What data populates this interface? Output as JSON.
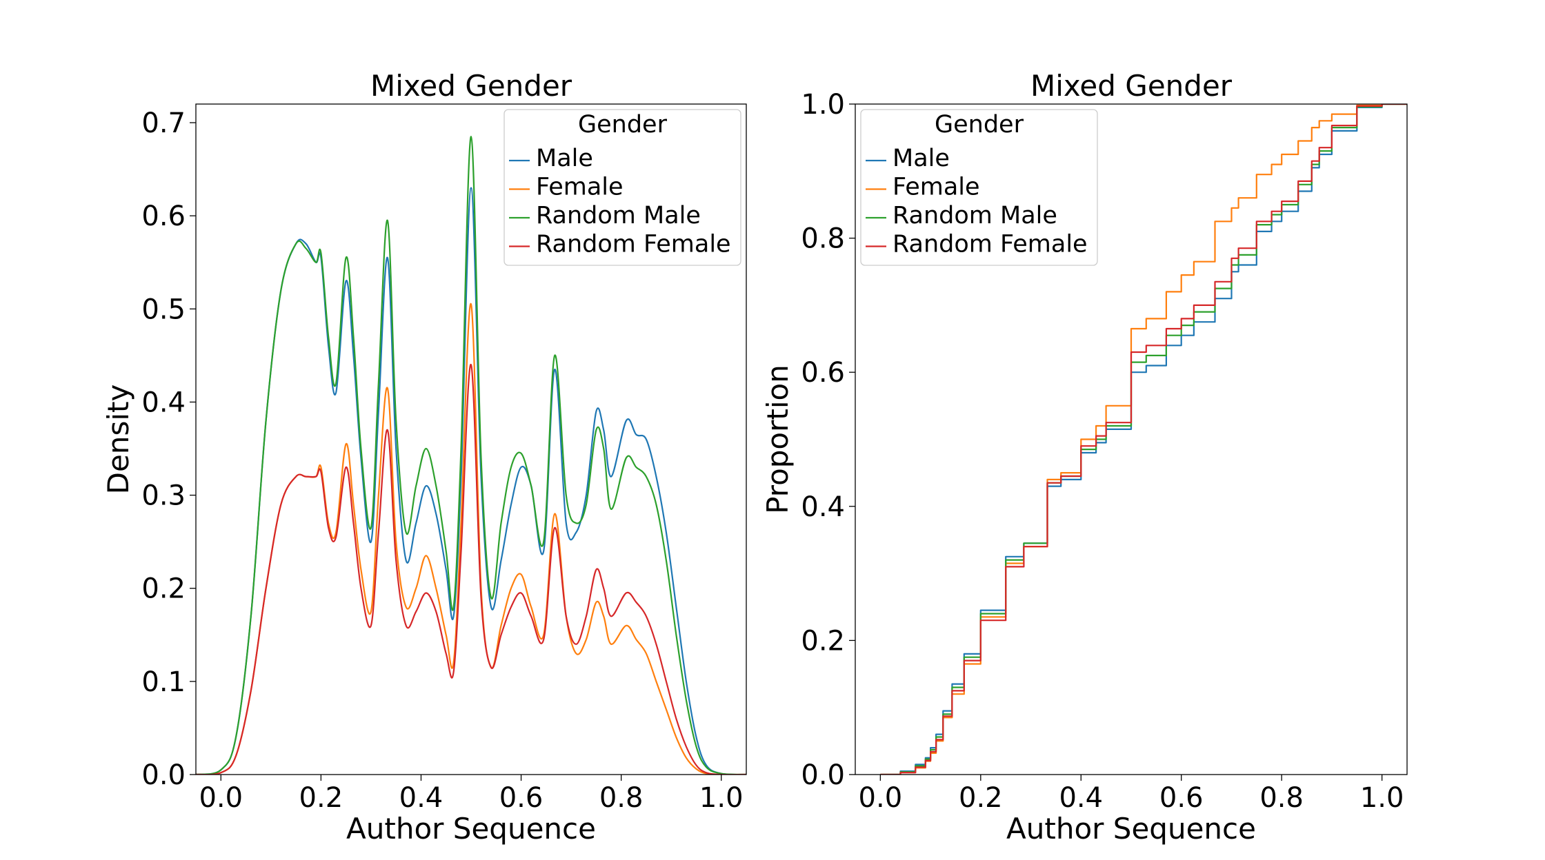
{
  "chart_data": [
    {
      "type": "line",
      "title": "Mixed Gender",
      "xlabel": "Author Sequence",
      "ylabel": "Density",
      "xlim": [
        -0.05,
        1.05
      ],
      "ylim": [
        0,
        0.72
      ],
      "xticks": [
        0.0,
        0.2,
        0.4,
        0.6,
        0.8,
        1.0
      ],
      "xtick_labels": [
        "0.0",
        "0.2",
        "0.4",
        "0.6",
        "0.8",
        "1.0"
      ],
      "yticks": [
        0.0,
        0.1,
        0.2,
        0.3,
        0.4,
        0.5,
        0.6,
        0.7
      ],
      "ytick_labels": [
        "0.0",
        "0.1",
        "0.2",
        "0.3",
        "0.4",
        "0.5",
        "0.6",
        "0.7"
      ],
      "grid": false,
      "legend": {
        "title": "Gender",
        "position": "top-right"
      },
      "series": [
        {
          "name": "Male",
          "color": "#1f77b4",
          "x": [
            -0.05,
            0,
            0.03,
            0.06,
            0.09,
            0.12,
            0.15,
            0.17,
            0.19,
            0.2,
            0.215,
            0.23,
            0.25,
            0.265,
            0.28,
            0.3,
            0.315,
            0.333,
            0.35,
            0.37,
            0.39,
            0.41,
            0.43,
            0.45,
            0.465,
            0.48,
            0.5,
            0.52,
            0.54,
            0.56,
            0.58,
            0.6,
            0.62,
            0.645,
            0.667,
            0.69,
            0.71,
            0.73,
            0.75,
            0.765,
            0.78,
            0.81,
            0.83,
            0.85,
            0.87,
            0.89,
            0.91,
            0.93,
            0.95,
            0.97,
            1.0,
            1.05
          ],
          "values": [
            0,
            0.005,
            0.04,
            0.17,
            0.38,
            0.52,
            0.57,
            0.57,
            0.55,
            0.555,
            0.46,
            0.41,
            0.53,
            0.45,
            0.34,
            0.25,
            0.39,
            0.555,
            0.35,
            0.23,
            0.27,
            0.31,
            0.28,
            0.22,
            0.17,
            0.32,
            0.63,
            0.32,
            0.18,
            0.23,
            0.29,
            0.33,
            0.31,
            0.24,
            0.435,
            0.27,
            0.26,
            0.3,
            0.39,
            0.37,
            0.32,
            0.38,
            0.365,
            0.36,
            0.32,
            0.26,
            0.18,
            0.1,
            0.04,
            0.01,
            0.001,
            0
          ]
        },
        {
          "name": "Female",
          "color": "#ff7f0e",
          "x": [
            -0.05,
            0,
            0.03,
            0.06,
            0.09,
            0.12,
            0.15,
            0.17,
            0.19,
            0.2,
            0.215,
            0.23,
            0.25,
            0.265,
            0.28,
            0.3,
            0.315,
            0.333,
            0.35,
            0.37,
            0.39,
            0.41,
            0.43,
            0.45,
            0.465,
            0.48,
            0.5,
            0.52,
            0.54,
            0.56,
            0.58,
            0.6,
            0.62,
            0.645,
            0.667,
            0.69,
            0.71,
            0.73,
            0.75,
            0.765,
            0.78,
            0.81,
            0.83,
            0.85,
            0.87,
            0.89,
            0.91,
            0.93,
            0.95,
            0.97,
            1.0,
            1.05
          ],
          "values": [
            0,
            0.002,
            0.02,
            0.09,
            0.2,
            0.29,
            0.32,
            0.32,
            0.32,
            0.33,
            0.27,
            0.26,
            0.355,
            0.29,
            0.22,
            0.175,
            0.3,
            0.415,
            0.25,
            0.18,
            0.2,
            0.235,
            0.2,
            0.15,
            0.12,
            0.27,
            0.505,
            0.2,
            0.115,
            0.16,
            0.2,
            0.215,
            0.18,
            0.15,
            0.28,
            0.17,
            0.13,
            0.145,
            0.185,
            0.17,
            0.14,
            0.16,
            0.145,
            0.13,
            0.1,
            0.07,
            0.04,
            0.018,
            0.006,
            0.001,
            0,
            0
          ]
        },
        {
          "name": "Random Male",
          "color": "#2ca02c",
          "x": [
            -0.05,
            0,
            0.03,
            0.06,
            0.09,
            0.12,
            0.15,
            0.17,
            0.19,
            0.2,
            0.215,
            0.23,
            0.25,
            0.265,
            0.28,
            0.3,
            0.315,
            0.333,
            0.35,
            0.37,
            0.39,
            0.41,
            0.43,
            0.45,
            0.465,
            0.48,
            0.5,
            0.52,
            0.54,
            0.56,
            0.58,
            0.6,
            0.62,
            0.645,
            0.667,
            0.69,
            0.71,
            0.73,
            0.75,
            0.765,
            0.78,
            0.81,
            0.83,
            0.85,
            0.87,
            0.89,
            0.91,
            0.93,
            0.95,
            0.97,
            1.0,
            1.05
          ],
          "values": [
            0,
            0.005,
            0.04,
            0.17,
            0.38,
            0.52,
            0.57,
            0.565,
            0.55,
            0.56,
            0.47,
            0.42,
            0.555,
            0.47,
            0.35,
            0.265,
            0.42,
            0.595,
            0.38,
            0.26,
            0.31,
            0.35,
            0.31,
            0.24,
            0.18,
            0.35,
            0.685,
            0.34,
            0.19,
            0.27,
            0.33,
            0.345,
            0.31,
            0.25,
            0.45,
            0.3,
            0.27,
            0.29,
            0.37,
            0.35,
            0.285,
            0.34,
            0.33,
            0.32,
            0.29,
            0.23,
            0.15,
            0.08,
            0.03,
            0.008,
            0.001,
            0
          ]
        },
        {
          "name": "Random Female",
          "color": "#d62728",
          "x": [
            -0.05,
            0,
            0.03,
            0.06,
            0.09,
            0.12,
            0.15,
            0.17,
            0.19,
            0.2,
            0.215,
            0.23,
            0.25,
            0.265,
            0.28,
            0.3,
            0.315,
            0.333,
            0.35,
            0.37,
            0.39,
            0.41,
            0.43,
            0.45,
            0.465,
            0.48,
            0.5,
            0.52,
            0.54,
            0.56,
            0.58,
            0.6,
            0.62,
            0.645,
            0.667,
            0.69,
            0.71,
            0.73,
            0.75,
            0.765,
            0.78,
            0.81,
            0.83,
            0.85,
            0.87,
            0.89,
            0.91,
            0.93,
            0.95,
            0.97,
            1.0,
            1.05
          ],
          "values": [
            0,
            0.002,
            0.02,
            0.09,
            0.2,
            0.29,
            0.32,
            0.32,
            0.32,
            0.325,
            0.265,
            0.255,
            0.33,
            0.27,
            0.2,
            0.16,
            0.26,
            0.37,
            0.23,
            0.16,
            0.175,
            0.195,
            0.175,
            0.13,
            0.11,
            0.24,
            0.44,
            0.19,
            0.115,
            0.15,
            0.18,
            0.195,
            0.17,
            0.145,
            0.265,
            0.17,
            0.14,
            0.17,
            0.22,
            0.2,
            0.17,
            0.195,
            0.185,
            0.17,
            0.14,
            0.1,
            0.06,
            0.03,
            0.01,
            0.002,
            0,
            0
          ]
        }
      ]
    },
    {
      "type": "line",
      "title": "Mixed Gender",
      "xlabel": "Author Sequence",
      "ylabel": "Proportion",
      "xlim": [
        -0.05,
        1.05
      ],
      "ylim": [
        0,
        1.0
      ],
      "xticks": [
        0.0,
        0.2,
        0.4,
        0.6,
        0.8,
        1.0
      ],
      "xtick_labels": [
        "0.0",
        "0.2",
        "0.4",
        "0.6",
        "0.8",
        "1.0"
      ],
      "yticks": [
        0.0,
        0.2,
        0.4,
        0.6,
        0.8,
        1.0
      ],
      "ytick_labels": [
        "0.0",
        "0.2",
        "0.4",
        "0.6",
        "0.8",
        "1.0"
      ],
      "grid": false,
      "step": true,
      "legend": {
        "title": "Gender",
        "position": "top-left"
      },
      "series": [
        {
          "name": "Male",
          "color": "#1f77b4",
          "x": [
            0,
            0.04,
            0.07,
            0.09,
            0.1,
            0.111,
            0.125,
            0.143,
            0.167,
            0.2,
            0.25,
            0.286,
            0.333,
            0.36,
            0.4,
            0.43,
            0.45,
            0.5,
            0.53,
            0.57,
            0.6,
            0.625,
            0.667,
            0.7,
            0.714,
            0.75,
            0.78,
            0.8,
            0.833,
            0.86,
            0.875,
            0.9,
            0.95,
            1.0
          ],
          "values": [
            0,
            0.005,
            0.015,
            0.025,
            0.04,
            0.06,
            0.095,
            0.135,
            0.18,
            0.245,
            0.325,
            0.345,
            0.43,
            0.44,
            0.48,
            0.495,
            0.515,
            0.6,
            0.61,
            0.64,
            0.655,
            0.675,
            0.71,
            0.75,
            0.76,
            0.81,
            0.825,
            0.84,
            0.87,
            0.905,
            0.925,
            0.96,
            0.995,
            1.0
          ]
        },
        {
          "name": "Female",
          "color": "#ff7f0e",
          "x": [
            0,
            0.04,
            0.07,
            0.09,
            0.1,
            0.111,
            0.125,
            0.143,
            0.167,
            0.2,
            0.25,
            0.286,
            0.333,
            0.36,
            0.4,
            0.43,
            0.45,
            0.5,
            0.53,
            0.57,
            0.6,
            0.625,
            0.667,
            0.7,
            0.714,
            0.75,
            0.78,
            0.8,
            0.833,
            0.86,
            0.875,
            0.9,
            0.95,
            1.0
          ],
          "values": [
            0,
            0.003,
            0.01,
            0.02,
            0.032,
            0.05,
            0.085,
            0.12,
            0.165,
            0.235,
            0.315,
            0.34,
            0.44,
            0.45,
            0.5,
            0.52,
            0.55,
            0.665,
            0.68,
            0.72,
            0.745,
            0.765,
            0.825,
            0.845,
            0.86,
            0.895,
            0.91,
            0.925,
            0.945,
            0.965,
            0.975,
            0.985,
            0.998,
            1.0
          ]
        },
        {
          "name": "Random Male",
          "color": "#2ca02c",
          "x": [
            0,
            0.04,
            0.07,
            0.09,
            0.1,
            0.111,
            0.125,
            0.143,
            0.167,
            0.2,
            0.25,
            0.286,
            0.333,
            0.36,
            0.4,
            0.43,
            0.45,
            0.5,
            0.53,
            0.57,
            0.6,
            0.625,
            0.667,
            0.7,
            0.714,
            0.75,
            0.78,
            0.8,
            0.833,
            0.86,
            0.875,
            0.9,
            0.95,
            1.0
          ],
          "values": [
            0,
            0.004,
            0.013,
            0.023,
            0.037,
            0.056,
            0.09,
            0.13,
            0.175,
            0.24,
            0.32,
            0.345,
            0.435,
            0.445,
            0.485,
            0.5,
            0.52,
            0.615,
            0.625,
            0.655,
            0.67,
            0.69,
            0.725,
            0.76,
            0.775,
            0.82,
            0.835,
            0.85,
            0.88,
            0.91,
            0.93,
            0.965,
            0.996,
            1.0
          ]
        },
        {
          "name": "Random Female",
          "color": "#d62728",
          "x": [
            0,
            0.04,
            0.07,
            0.09,
            0.1,
            0.111,
            0.125,
            0.143,
            0.167,
            0.2,
            0.25,
            0.286,
            0.333,
            0.36,
            0.4,
            0.43,
            0.45,
            0.5,
            0.53,
            0.57,
            0.6,
            0.625,
            0.667,
            0.7,
            0.714,
            0.75,
            0.78,
            0.8,
            0.833,
            0.86,
            0.875,
            0.9,
            0.95,
            1.0
          ],
          "values": [
            0,
            0.003,
            0.011,
            0.021,
            0.034,
            0.052,
            0.087,
            0.125,
            0.17,
            0.23,
            0.31,
            0.34,
            0.435,
            0.445,
            0.49,
            0.505,
            0.525,
            0.63,
            0.64,
            0.665,
            0.68,
            0.7,
            0.735,
            0.77,
            0.785,
            0.825,
            0.84,
            0.855,
            0.885,
            0.915,
            0.935,
            0.968,
            0.997,
            1.0
          ]
        }
      ]
    }
  ]
}
